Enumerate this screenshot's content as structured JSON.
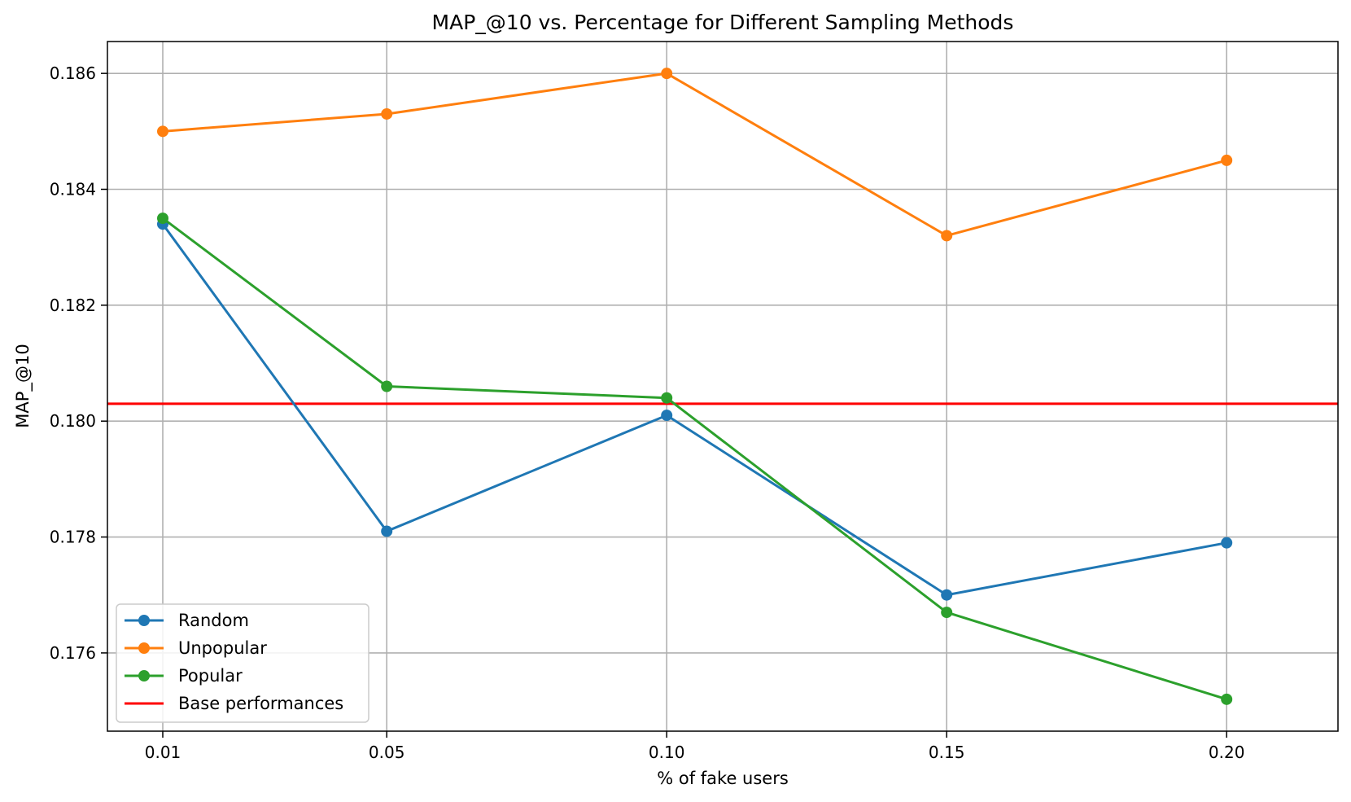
{
  "chart_data": {
    "type": "line",
    "title": "MAP_@10 vs. Percentage for Different Sampling Methods",
    "xlabel": "% of fake users",
    "ylabel": "MAP_@10",
    "x": [
      0.01,
      0.05,
      0.1,
      0.15,
      0.2
    ],
    "x_tick_labels": [
      "0.01",
      "0.05",
      "0.10",
      "0.15",
      "0.20"
    ],
    "y_ticks": [
      0.176,
      0.178,
      0.18,
      0.182,
      0.184,
      0.186
    ],
    "y_tick_labels": [
      "0.176",
      "0.178",
      "0.180",
      "0.182",
      "0.184",
      "0.186"
    ],
    "ylim": [
      0.17465,
      0.18655
    ],
    "grid": true,
    "legend_position": "lower-left",
    "series": [
      {
        "name": "Random",
        "color": "#1f77b4",
        "values": [
          0.1834,
          0.1781,
          0.1801,
          0.177,
          0.1779
        ]
      },
      {
        "name": "Unpopular",
        "color": "#ff7f0e",
        "values": [
          0.185,
          0.1853,
          0.186,
          0.1832,
          0.1845
        ]
      },
      {
        "name": "Popular",
        "color": "#2ca02c",
        "values": [
          0.1835,
          0.1806,
          0.1804,
          0.1767,
          0.1752
        ]
      }
    ],
    "baseline": {
      "name": "Base performances",
      "color": "#ff0000",
      "value": 0.1803
    }
  }
}
